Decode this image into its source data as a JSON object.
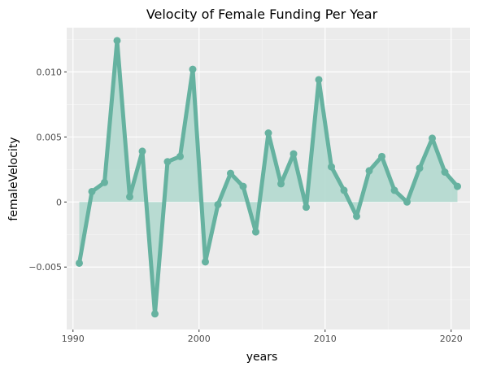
{
  "chart_data": {
    "type": "line",
    "title": "Velocity of Female Funding Per Year",
    "xlabel": "years",
    "ylabel": "femaleVelocity",
    "xlim": [
      1989.5,
      2021.5
    ],
    "ylim": [
      -0.0098,
      0.0134
    ],
    "x_ticks": [
      1990,
      2000,
      2010,
      2020
    ],
    "x_tick_labels": [
      "1990",
      "2000",
      "2010",
      "2020"
    ],
    "y_ticks": [
      -0.005,
      0,
      0.005,
      0.01
    ],
    "y_tick_labels": [
      "−0.005",
      "0",
      "0.005",
      "0.010"
    ],
    "grid": true,
    "series": [
      {
        "x": [
          1990.5,
          1991.5,
          1992.5,
          1993.5,
          1994.5,
          1995.5,
          1996.5,
          1997.5,
          1998.5,
          1999.5,
          2000.5,
          2001.5,
          2002.5,
          2003.5,
          2004.5,
          2005.5,
          2006.5,
          2007.5,
          2008.5,
          2009.5,
          2010.5,
          2011.5,
          2012.5,
          2013.5,
          2014.5,
          2015.5,
          2016.5,
          2017.5,
          2018.5,
          2019.5,
          2020.5
        ],
        "values": [
          -0.0047,
          0.0008,
          0.0015,
          0.0124,
          0.0004,
          0.0039,
          -0.0086,
          0.0031,
          0.0035,
          0.0102,
          -0.0046,
          -0.0002,
          0.0022,
          0.0012,
          -0.0023,
          0.0053,
          0.0014,
          0.0037,
          -0.0004,
          0.0094,
          0.0027,
          0.0009,
          -0.0011,
          0.0024,
          0.0035,
          0.0009,
          0.0,
          0.0026,
          0.0049,
          0.0023,
          0.0012
        ]
      }
    ],
    "colors": {
      "line": "#66b2a0",
      "area": "#b3d9cf",
      "panel": "#ebebeb",
      "grid_major": "#ffffff",
      "grid_minor": "#f5f5f5"
    }
  }
}
